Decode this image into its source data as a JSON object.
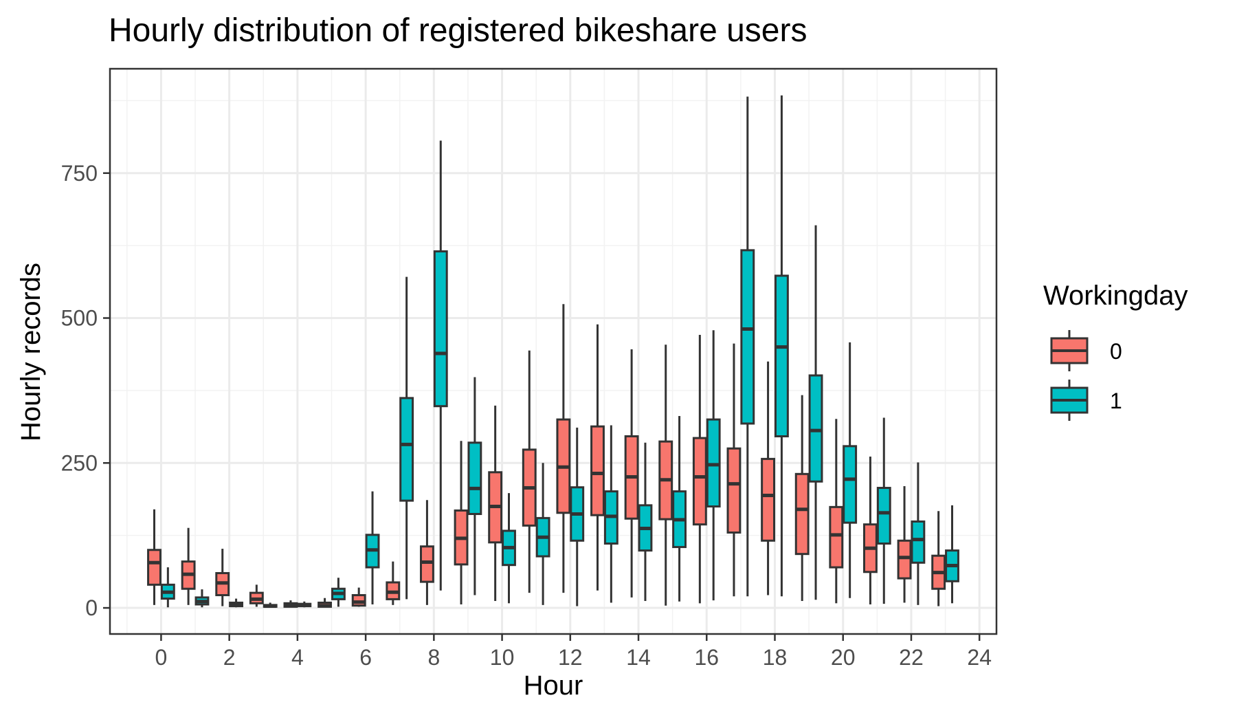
{
  "chart_data": {
    "type": "box",
    "title": "Hourly distribution of registered bikeshare users",
    "xlabel": "Hour",
    "ylabel": "Hourly records",
    "xlim": [
      -1.5,
      24.5
    ],
    "ylim": [
      -45,
      930
    ],
    "x_ticks": [
      0,
      2,
      4,
      6,
      8,
      10,
      12,
      14,
      16,
      18,
      20,
      22,
      24
    ],
    "y_ticks": [
      0,
      250,
      500,
      750
    ],
    "grid": true,
    "legend": {
      "title": "Workingday",
      "position": "right",
      "entries": [
        {
          "label": "0",
          "color": "#F8766D"
        },
        {
          "label": "1",
          "color": "#00BFC4"
        }
      ]
    },
    "series": [
      {
        "name": "0",
        "color": "#F8766D",
        "boxes": [
          {
            "hour": 0,
            "whisker_low": 5,
            "q1": 40,
            "median": 78,
            "q3": 100,
            "whisker_high": 170
          },
          {
            "hour": 1,
            "whisker_low": 5,
            "q1": 33,
            "median": 58,
            "q3": 80,
            "whisker_high": 138
          },
          {
            "hour": 2,
            "whisker_low": 3,
            "q1": 22,
            "median": 43,
            "q3": 60,
            "whisker_high": 102
          },
          {
            "hour": 3,
            "whisker_low": 2,
            "q1": 8,
            "median": 15,
            "q3": 26,
            "whisker_high": 40
          },
          {
            "hour": 4,
            "whisker_low": 1,
            "q1": 2,
            "median": 5,
            "q3": 8,
            "whisker_high": 13
          },
          {
            "hour": 5,
            "whisker_low": 1,
            "q1": 2,
            "median": 4,
            "q3": 9,
            "whisker_high": 17
          },
          {
            "hour": 6,
            "whisker_low": 2,
            "q1": 4,
            "median": 10,
            "q3": 22,
            "whisker_high": 35
          },
          {
            "hour": 7,
            "whisker_low": 5,
            "q1": 15,
            "median": 27,
            "q3": 44,
            "whisker_high": 80
          },
          {
            "hour": 8,
            "whisker_low": 5,
            "q1": 45,
            "median": 79,
            "q3": 106,
            "whisker_high": 186
          },
          {
            "hour": 9,
            "whisker_low": 6,
            "q1": 75,
            "median": 120,
            "q3": 168,
            "whisker_high": 288
          },
          {
            "hour": 10,
            "whisker_low": 12,
            "q1": 113,
            "median": 175,
            "q3": 234,
            "whisker_high": 349
          },
          {
            "hour": 11,
            "whisker_low": 26,
            "q1": 142,
            "median": 207,
            "q3": 273,
            "whisker_high": 444
          },
          {
            "hour": 12,
            "whisker_low": 26,
            "q1": 164,
            "median": 243,
            "q3": 325,
            "whisker_high": 524
          },
          {
            "hour": 13,
            "whisker_low": 30,
            "q1": 160,
            "median": 232,
            "q3": 313,
            "whisker_high": 489
          },
          {
            "hour": 14,
            "whisker_low": 18,
            "q1": 154,
            "median": 226,
            "q3": 296,
            "whisker_high": 446
          },
          {
            "hour": 15,
            "whisker_low": 4,
            "q1": 153,
            "median": 221,
            "q3": 287,
            "whisker_high": 454
          },
          {
            "hour": 16,
            "whisker_low": 8,
            "q1": 144,
            "median": 226,
            "q3": 293,
            "whisker_high": 471
          },
          {
            "hour": 17,
            "whisker_low": 20,
            "q1": 130,
            "median": 214,
            "q3": 275,
            "whisker_high": 456
          },
          {
            "hour": 18,
            "whisker_low": 22,
            "q1": 116,
            "median": 194,
            "q3": 257,
            "whisker_high": 425
          },
          {
            "hour": 19,
            "whisker_low": 12,
            "q1": 93,
            "median": 170,
            "q3": 231,
            "whisker_high": 367
          },
          {
            "hour": 20,
            "whisker_low": 8,
            "q1": 70,
            "median": 126,
            "q3": 174,
            "whisker_high": 326
          },
          {
            "hour": 21,
            "whisker_low": 6,
            "q1": 62,
            "median": 103,
            "q3": 144,
            "whisker_high": 261
          },
          {
            "hour": 22,
            "whisker_low": 9,
            "q1": 51,
            "median": 87,
            "q3": 116,
            "whisker_high": 210
          },
          {
            "hour": 23,
            "whisker_low": 3,
            "q1": 33,
            "median": 61,
            "q3": 90,
            "whisker_high": 167
          }
        ]
      },
      {
        "name": "1",
        "color": "#00BFC4",
        "boxes": [
          {
            "hour": 0,
            "whisker_low": 1,
            "q1": 16,
            "median": 27,
            "q3": 40,
            "whisker_high": 70
          },
          {
            "hour": 1,
            "whisker_low": 1,
            "q1": 6,
            "median": 11,
            "q3": 18,
            "whisker_high": 32
          },
          {
            "hour": 2,
            "whisker_low": 1,
            "q1": 3,
            "median": 5,
            "q3": 9,
            "whisker_high": 16
          },
          {
            "hour": 3,
            "whisker_low": 1,
            "q1": 2,
            "median": 3,
            "q3": 5,
            "whisker_high": 9
          },
          {
            "hour": 4,
            "whisker_low": 1,
            "q1": 3,
            "median": 5,
            "q3": 7,
            "whisker_high": 11
          },
          {
            "hour": 5,
            "whisker_low": 2,
            "q1": 15,
            "median": 25,
            "q3": 33,
            "whisker_high": 52
          },
          {
            "hour": 6,
            "whisker_low": 6,
            "q1": 70,
            "median": 100,
            "q3": 126,
            "whisker_high": 201
          },
          {
            "hour": 7,
            "whisker_low": 15,
            "q1": 185,
            "median": 282,
            "q3": 362,
            "whisker_high": 571
          },
          {
            "hour": 8,
            "whisker_low": 30,
            "q1": 348,
            "median": 439,
            "q3": 615,
            "whisker_high": 806
          },
          {
            "hour": 9,
            "whisker_low": 22,
            "q1": 162,
            "median": 206,
            "q3": 285,
            "whisker_high": 398
          },
          {
            "hour": 10,
            "whisker_low": 8,
            "q1": 74,
            "median": 104,
            "q3": 133,
            "whisker_high": 198
          },
          {
            "hour": 11,
            "whisker_low": 5,
            "q1": 89,
            "median": 122,
            "q3": 155,
            "whisker_high": 250
          },
          {
            "hour": 12,
            "whisker_low": 3,
            "q1": 116,
            "median": 162,
            "q3": 208,
            "whisker_high": 311
          },
          {
            "hour": 13,
            "whisker_low": 9,
            "q1": 111,
            "median": 158,
            "q3": 201,
            "whisker_high": 315
          },
          {
            "hour": 14,
            "whisker_low": 12,
            "q1": 99,
            "median": 137,
            "q3": 177,
            "whisker_high": 285
          },
          {
            "hour": 15,
            "whisker_low": 11,
            "q1": 105,
            "median": 152,
            "q3": 201,
            "whisker_high": 331
          },
          {
            "hour": 16,
            "whisker_low": 13,
            "q1": 175,
            "median": 247,
            "q3": 325,
            "whisker_high": 479
          },
          {
            "hour": 17,
            "whisker_low": 20,
            "q1": 318,
            "median": 481,
            "q3": 617,
            "whisker_high": 882
          },
          {
            "hour": 18,
            "whisker_low": 20,
            "q1": 296,
            "median": 450,
            "q3": 573,
            "whisker_high": 884
          },
          {
            "hour": 19,
            "whisker_low": 14,
            "q1": 218,
            "median": 306,
            "q3": 401,
            "whisker_high": 660
          },
          {
            "hour": 20,
            "whisker_low": 17,
            "q1": 147,
            "median": 222,
            "q3": 279,
            "whisker_high": 458
          },
          {
            "hour": 21,
            "whisker_low": 7,
            "q1": 111,
            "median": 164,
            "q3": 207,
            "whisker_high": 328
          },
          {
            "hour": 22,
            "whisker_low": 5,
            "q1": 78,
            "median": 118,
            "q3": 149,
            "whisker_high": 251
          },
          {
            "hour": 23,
            "whisker_low": 8,
            "q1": 46,
            "median": 73,
            "q3": 99,
            "whisker_high": 177
          }
        ]
      }
    ]
  }
}
